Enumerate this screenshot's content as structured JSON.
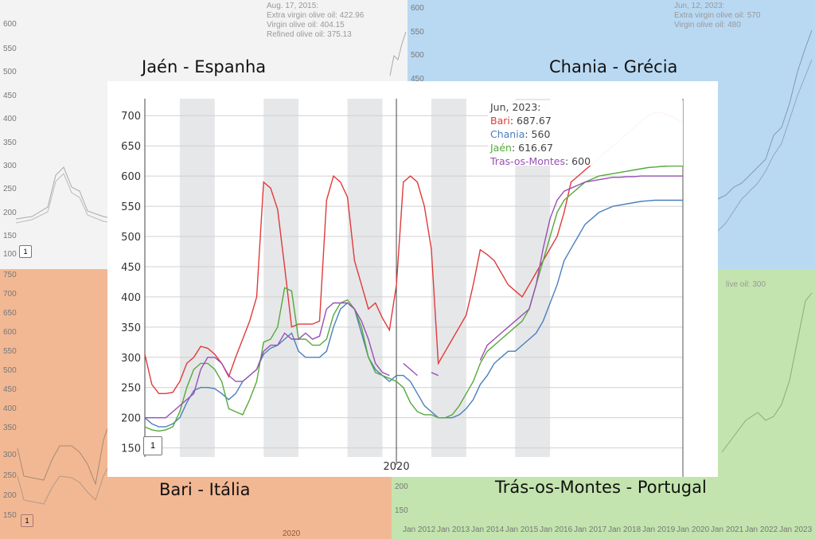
{
  "regions": {
    "top_left": "Jaén - Espanha",
    "top_right": "Chania - Grécia",
    "bottom_left": "Bari - Itália",
    "bottom_right": "Trás-os-Montes - Portugal"
  },
  "colors": {
    "bari": "#e03a3a",
    "chania": "#4a7fbd",
    "jaen": "#55a93a",
    "tras": "#9a4fb3",
    "shade": "#e6e7e9",
    "grid": "#d0d0d0"
  },
  "bg_jaen": {
    "tooltip": [
      "Aug. 17, 2015:",
      "Extra virgin olive oil: 422.96",
      "Virgin olive oil: 404.15",
      "Refined olive oil: 375.13"
    ],
    "yticks": [
      "600",
      "550",
      "500",
      "450",
      "400",
      "350",
      "300",
      "250",
      "200",
      "150",
      "100"
    ],
    "zoom_box": "1"
  },
  "bg_chania": {
    "tooltip": [
      "Jun, 12, 2023:",
      "Extra virgin olive oil: 570",
      "Virgin olive oil: 480"
    ],
    "yticks": [
      "600",
      "550",
      "500",
      "450",
      "400",
      "350",
      "300",
      "250",
      "200",
      "150",
      "100"
    ]
  },
  "bg_bari": {
    "yticks": [
      "750",
      "700",
      "650",
      "600",
      "550",
      "500",
      "450",
      "400",
      "350",
      "300",
      "250",
      "200",
      "150"
    ],
    "zoom_box": "1",
    "xlabel": "2020"
  },
  "bg_tras": {
    "tooltip_fragment": "live oil: 300",
    "yticks": [
      "200",
      "150"
    ],
    "xticks": [
      "Jan 2012",
      "Jan 2013",
      "Jan 2014",
      "Jan 2015",
      "Jan 2016",
      "Jan 2017",
      "Jan 2018",
      "Jan 2019",
      "Jan 2020",
      "Jan 2021",
      "Jan 2022",
      "Jan 2023"
    ]
  },
  "tooltip": {
    "date": "Jun, 2023:",
    "bari_label": "Bari",
    "bari_value": ": 687.67",
    "chania_label": "Chania",
    "chania_value": ": 560",
    "jaen_label": "Jaén",
    "jaen_value": ": 616.67",
    "tras_label": "Tras-os-Montes",
    "tras_value": ": 600"
  },
  "chart_data": {
    "type": "line",
    "x_start": "2017-01",
    "x_end": "2023-06",
    "x": [
      "2017-01",
      "2017-02",
      "2017-03",
      "2017-04",
      "2017-05",
      "2017-06",
      "2017-07",
      "2017-08",
      "2017-09",
      "2017-10",
      "2017-11",
      "2017-12",
      "2018-01",
      "2018-02",
      "2018-03",
      "2018-04",
      "2018-05",
      "2018-06",
      "2018-07",
      "2018-08",
      "2018-09",
      "2018-10",
      "2018-11",
      "2018-12",
      "2019-01",
      "2019-02",
      "2019-03",
      "2019-04",
      "2019-05",
      "2019-06",
      "2019-07",
      "2019-08",
      "2019-09",
      "2019-10",
      "2019-11",
      "2019-12",
      "2020-01",
      "2020-02",
      "2020-03",
      "2020-04",
      "2020-05",
      "2020-06",
      "2020-07",
      "2020-08",
      "2020-09",
      "2020-10",
      "2020-11",
      "2020-12",
      "2021-01",
      "2021-02",
      "2021-03",
      "2021-04",
      "2021-05",
      "2021-06",
      "2021-07",
      "2021-08",
      "2021-09",
      "2021-10",
      "2021-11",
      "2021-12",
      "2022-01",
      "2022-02",
      "2022-03",
      "2022-04",
      "2022-05",
      "2022-06",
      "2022-07",
      "2022-08",
      "2022-09",
      "2022-10",
      "2022-11",
      "2022-12",
      "2023-01",
      "2023-02",
      "2023-03",
      "2023-04",
      "2023-05",
      "2023-06"
    ],
    "x_tick_labels": [
      "2020"
    ],
    "x_tick_values": [
      "2020-01"
    ],
    "yticks": [
      150,
      200,
      250,
      300,
      350,
      400,
      450,
      500,
      550,
      600,
      650,
      700
    ],
    "ylim": [
      135,
      728
    ],
    "grid": true,
    "shaded_bands": [
      [
        "2017-06",
        "2017-11"
      ],
      [
        "2018-06",
        "2018-11"
      ],
      [
        "2019-06",
        "2019-11"
      ],
      [
        "2020-06",
        "2020-11"
      ],
      [
        "2021-06",
        "2021-11"
      ]
    ],
    "series": [
      {
        "name": "Bari",
        "color": "#e03a3a",
        "values": [
          305,
          255,
          240,
          240,
          242,
          260,
          290,
          300,
          318,
          315,
          305,
          290,
          268,
          300,
          330,
          360,
          400,
          590,
          580,
          545,
          450,
          350,
          355,
          355,
          355,
          360,
          560,
          600,
          590,
          565,
          460,
          420,
          380,
          390,
          365,
          345,
          420,
          590,
          600,
          590,
          550,
          480,
          290,
          310,
          330,
          350,
          370,
          420,
          478,
          470,
          460,
          440,
          420,
          410,
          400,
          420,
          440,
          460,
          480,
          500,
          540,
          590,
          600,
          610,
          620,
          630,
          640,
          650,
          660,
          670,
          680,
          690,
          700,
          705,
          705,
          700,
          695,
          687.67
        ]
      },
      {
        "name": "Chania",
        "color": "#4a7fbd",
        "values": [
          200,
          190,
          185,
          185,
          190,
          200,
          225,
          245,
          250,
          250,
          248,
          240,
          230,
          240,
          260,
          270,
          280,
          305,
          315,
          320,
          330,
          340,
          310,
          300,
          300,
          300,
          310,
          350,
          380,
          390,
          380,
          340,
          300,
          280,
          270,
          260,
          270,
          270,
          260,
          240,
          220,
          210,
          200,
          200,
          200,
          205,
          215,
          230,
          255,
          270,
          290,
          300,
          310,
          310,
          320,
          330,
          340,
          360,
          390,
          420,
          460,
          480,
          500,
          520,
          530,
          540,
          545,
          550,
          552,
          554,
          556,
          558,
          559,
          560,
          560,
          560,
          560,
          560
        ]
      },
      {
        "name": "Jaén",
        "color": "#55a93a",
        "values": [
          185,
          180,
          178,
          180,
          185,
          210,
          250,
          280,
          290,
          290,
          280,
          260,
          215,
          210,
          205,
          230,
          260,
          325,
          330,
          350,
          415,
          410,
          330,
          330,
          320,
          320,
          330,
          370,
          390,
          395,
          380,
          350,
          300,
          275,
          270,
          265,
          260,
          250,
          225,
          210,
          205,
          205,
          200,
          200,
          205,
          220,
          240,
          260,
          290,
          310,
          320,
          330,
          340,
          350,
          360,
          380,
          420,
          460,
          500,
          540,
          560,
          570,
          580,
          590,
          595,
          600,
          602,
          604,
          606,
          608,
          610,
          612,
          614,
          615,
          616,
          616.67,
          616.67,
          616.67
        ]
      },
      {
        "name": "Tras-os-Montes",
        "color": "#9a4fb3",
        "values": [
          200,
          200,
          200,
          200,
          210,
          220,
          230,
          240,
          280,
          300,
          300,
          290,
          270,
          260,
          260,
          270,
          280,
          310,
          320,
          320,
          340,
          330,
          330,
          340,
          330,
          335,
          380,
          390,
          390,
          390,
          380,
          360,
          330,
          290,
          275,
          270,
          null,
          290,
          280,
          270,
          null,
          275,
          270,
          null,
          null,
          null,
          null,
          null,
          295,
          320,
          330,
          340,
          350,
          360,
          370,
          380,
          420,
          480,
          530,
          560,
          575,
          580,
          585,
          590,
          592,
          594,
          596,
          598,
          598,
          599,
          599,
          600,
          600,
          600,
          600,
          600,
          600,
          600
        ]
      }
    ]
  }
}
